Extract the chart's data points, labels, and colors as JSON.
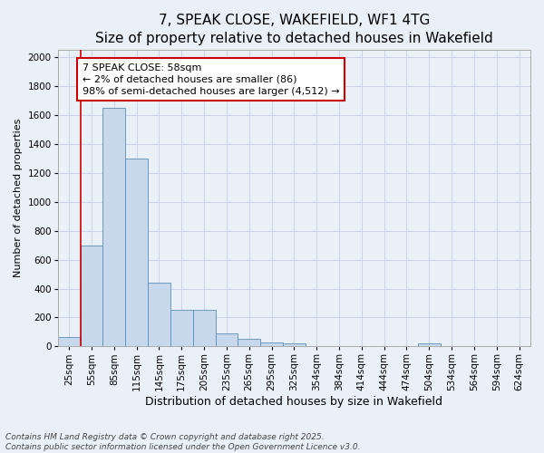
{
  "title": "7, SPEAK CLOSE, WAKEFIELD, WF1 4TG",
  "subtitle": "Size of property relative to detached houses in Wakefield",
  "xlabel": "Distribution of detached houses by size in Wakefield",
  "ylabel": "Number of detached properties",
  "categories": [
    "25sqm",
    "55sqm",
    "85sqm",
    "115sqm",
    "145sqm",
    "175sqm",
    "205sqm",
    "235sqm",
    "265sqm",
    "295sqm",
    "325sqm",
    "354sqm",
    "384sqm",
    "414sqm",
    "444sqm",
    "474sqm",
    "504sqm",
    "534sqm",
    "564sqm",
    "594sqm",
    "624sqm"
  ],
  "values": [
    65,
    700,
    1650,
    1300,
    440,
    250,
    250,
    90,
    50,
    25,
    20,
    0,
    0,
    0,
    0,
    0,
    20,
    0,
    0,
    0,
    0
  ],
  "bar_color": "#c8d8ec",
  "bar_edge_color": "#5b8db8",
  "grid_color": "#c8d4e8",
  "background_color": "#eaf0f8",
  "annotation_text": "7 SPEAK CLOSE: 58sqm\n← 2% of detached houses are smaller (86)\n98% of semi-detached houses are larger (4,512) →",
  "annotation_box_color": "#ffffff",
  "annotation_box_edge_color": "#cc0000",
  "vline_color": "#cc0000",
  "ylim": [
    0,
    2050
  ],
  "yticks": [
    0,
    200,
    400,
    600,
    800,
    1000,
    1200,
    1400,
    1600,
    1800,
    2000
  ],
  "footer1": "Contains HM Land Registry data © Crown copyright and database right 2025.",
  "footer2": "Contains public sector information licensed under the Open Government Licence v3.0.",
  "title_fontsize": 11,
  "xlabel_fontsize": 9,
  "ylabel_fontsize": 8,
  "tick_fontsize": 7.5,
  "annotation_fontsize": 8,
  "footer_fontsize": 6.5
}
